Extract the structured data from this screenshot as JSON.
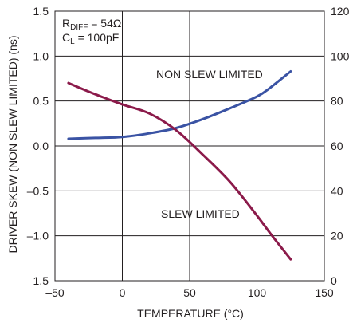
{
  "chart_data": {
    "type": "line",
    "title": "",
    "xlabel": "TEMPERATURE (°C)",
    "ylabel": "DRIVER SKEW (NON SLEW LIMITED) (ns)",
    "y2label": "",
    "xlim": [
      -50,
      150
    ],
    "ylim": [
      -1.5,
      1.5
    ],
    "y2lim": [
      0,
      120
    ],
    "x_ticks": [
      "–50",
      "0",
      "50",
      "100",
      "150"
    ],
    "y_ticks": [
      "1.5",
      "1.0",
      "0.5",
      "0.0",
      "–0.5",
      "–1.0",
      "–1.5"
    ],
    "y2_ticks": [
      "120",
      "100",
      "80",
      "60",
      "40",
      "20",
      "0"
    ],
    "grid": true,
    "conditions": {
      "rdiff": {
        "prefix": "R",
        "sub": "DIFF",
        "text": " = 54Ω"
      },
      "cl": {
        "prefix": "C",
        "sub": "L",
        "text": " = 100pF"
      }
    },
    "series": [
      {
        "name": "NON SLEW LIMITED",
        "axis": "left",
        "color": "#3a53a4",
        "x": [
          -40,
          -20,
          0,
          20,
          40,
          60,
          80,
          100,
          110,
          125
        ],
        "y": [
          0.08,
          0.09,
          0.1,
          0.14,
          0.2,
          0.3,
          0.42,
          0.55,
          0.65,
          0.83
        ]
      },
      {
        "name": "SLEW LIMITED",
        "axis": "right",
        "color": "#8b1a4a",
        "x": [
          -40,
          -20,
          0,
          20,
          40,
          60,
          80,
          100,
          110,
          125
        ],
        "y": [
          88,
          83,
          78.5,
          74.5,
          67,
          56,
          44,
          29,
          21,
          9.5
        ]
      }
    ]
  }
}
